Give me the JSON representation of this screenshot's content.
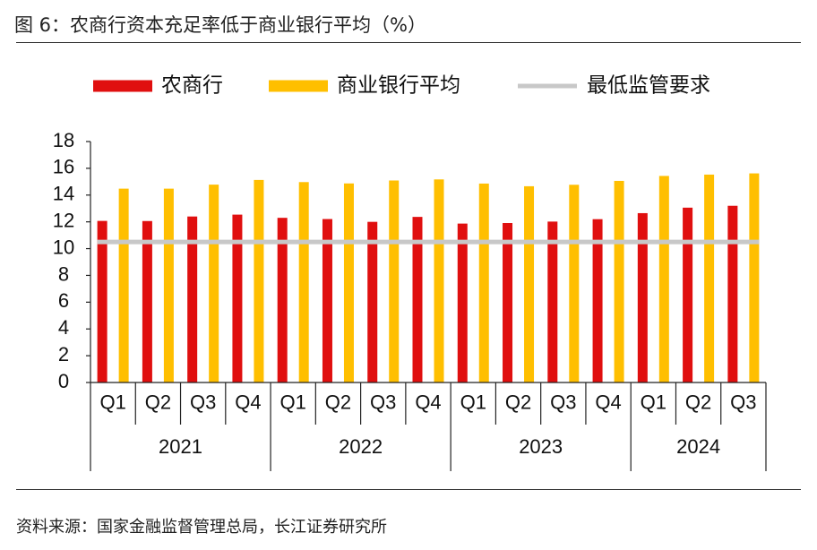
{
  "title": "图 6：农商行资本充足率低于商业银行平均（%）",
  "source": "资料来源：国家金融监督管理总局，长江证券研究所",
  "colors": {
    "rural": "#e00f0f",
    "average": "#ffbf00",
    "minimum": "#c8c8c8"
  },
  "chart_data": {
    "type": "bar",
    "title": "",
    "xlabel": "",
    "ylabel": "",
    "ylim": [
      0,
      18
    ],
    "yticks": [
      0,
      2,
      4,
      6,
      8,
      10,
      12,
      14,
      16,
      18
    ],
    "grid": false,
    "legend_position": "top",
    "categories": [
      "2021 Q1",
      "2021 Q2",
      "2021 Q3",
      "2021 Q4",
      "2022 Q1",
      "2022 Q2",
      "2022 Q3",
      "2022 Q4",
      "2023 Q1",
      "2023 Q2",
      "2023 Q3",
      "2023 Q4",
      "2024 Q1",
      "2024 Q2",
      "2024 Q3"
    ],
    "quarter_labels": [
      "Q1",
      "Q2",
      "Q3",
      "Q4",
      "Q1",
      "Q2",
      "Q3",
      "Q4",
      "Q1",
      "Q2",
      "Q3",
      "Q4",
      "Q1",
      "Q2",
      "Q3"
    ],
    "year_groups": [
      {
        "label": "2021",
        "count": 4
      },
      {
        "label": "2022",
        "count": 4
      },
      {
        "label": "2023",
        "count": 4
      },
      {
        "label": "2024",
        "count": 3
      }
    ],
    "series": [
      {
        "name": "农商行",
        "type": "bar",
        "color": "#e00f0f",
        "values": [
          12.07,
          12.06,
          12.4,
          12.54,
          12.3,
          12.21,
          12.0,
          12.37,
          11.87,
          11.91,
          12.02,
          12.2,
          12.65,
          13.06,
          13.2
        ]
      },
      {
        "name": "商业银行平均",
        "type": "bar",
        "color": "#ffbf00",
        "values": [
          14.48,
          14.48,
          14.78,
          15.13,
          14.97,
          14.87,
          15.09,
          15.17,
          14.86,
          14.66,
          14.77,
          15.06,
          15.43,
          15.53,
          15.62
        ]
      },
      {
        "name": "最低监管要求",
        "type": "line",
        "color": "#c8c8c8",
        "values": [
          10.5,
          10.5,
          10.5,
          10.5,
          10.5,
          10.5,
          10.5,
          10.5,
          10.5,
          10.5,
          10.5,
          10.5,
          10.5,
          10.5,
          10.5
        ]
      }
    ]
  }
}
